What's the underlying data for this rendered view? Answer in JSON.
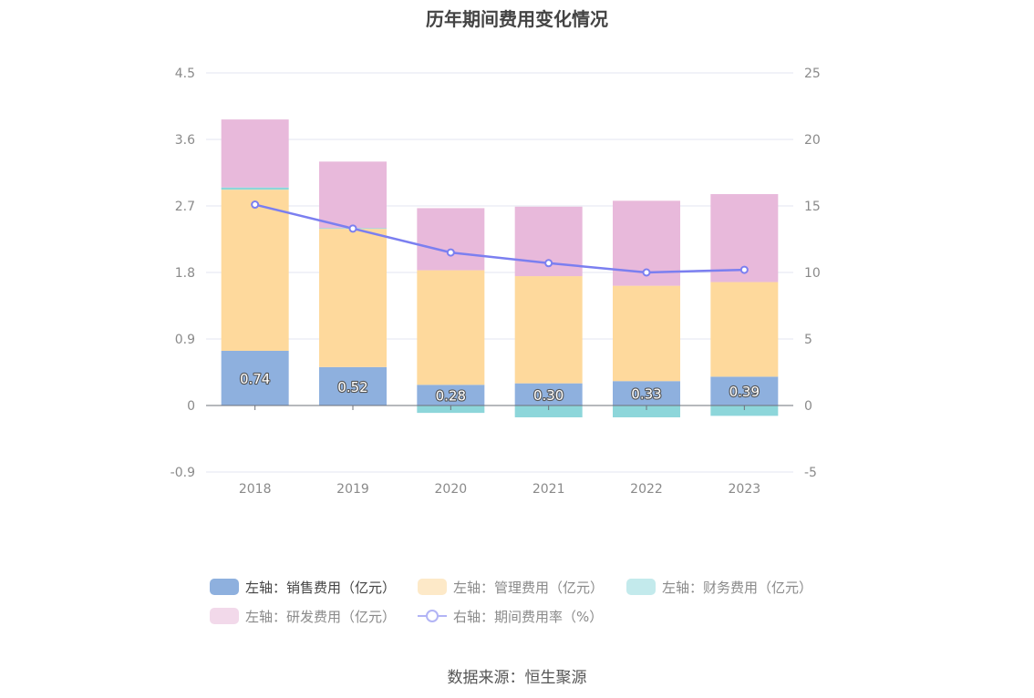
{
  "title": "历年期间费用变化情况",
  "source": "数据来源：恒生聚源",
  "chart_data": {
    "type": "bar",
    "stacked": true,
    "categories": [
      "2018",
      "2019",
      "2020",
      "2021",
      "2022",
      "2023"
    ],
    "y_left": {
      "ylim": [
        -0.9,
        4.5
      ],
      "ticks": [
        "4.5",
        "3.6",
        "2.7",
        "1.8",
        "0.9",
        "0",
        "-0.9"
      ]
    },
    "y_right": {
      "ylim": [
        -5,
        25
      ],
      "ticks": [
        "25",
        "20",
        "15",
        "10",
        "5",
        "0",
        "-5"
      ]
    },
    "series": [
      {
        "name": "左轴：销售费用（亿元）",
        "axis": "left",
        "kind": "bar",
        "color": "#8eb0de",
        "values": [
          0.74,
          0.52,
          0.28,
          0.3,
          0.33,
          0.39
        ],
        "labels": [
          "0.74",
          "0.52",
          "0.28",
          "0.30",
          "0.33",
          "0.39"
        ]
      },
      {
        "name": "左轴：管理费用（亿元）",
        "axis": "left",
        "kind": "bar",
        "color": "#fed99c",
        "values": [
          2.18,
          1.87,
          1.55,
          1.45,
          1.29,
          1.28
        ]
      },
      {
        "name": "左轴：财务费用（亿元）",
        "axis": "left",
        "kind": "bar",
        "color": "#8dd6da",
        "values": [
          0.03,
          0.01,
          -0.1,
          -0.16,
          -0.16,
          -0.14
        ]
      },
      {
        "name": "左轴：研发费用（亿元）",
        "axis": "left",
        "kind": "bar",
        "color": "#e8b9db",
        "values": [
          0.92,
          0.9,
          0.84,
          0.94,
          1.15,
          1.19
        ]
      },
      {
        "name": "右轴：期间费用率（%）",
        "axis": "right",
        "kind": "line",
        "color": "#7b7ff0",
        "values": [
          15.1,
          13.3,
          11.5,
          10.7,
          10.0,
          10.2
        ]
      }
    ],
    "legend_position": "bottom",
    "grid": true
  }
}
